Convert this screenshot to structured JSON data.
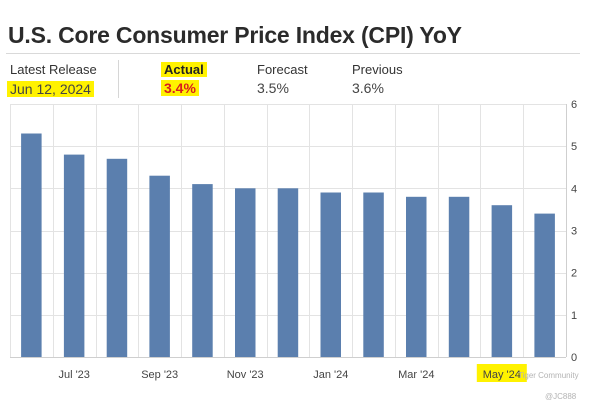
{
  "header": {
    "title": "U.S. Core Consumer Price Index (CPI) YoY"
  },
  "stats": {
    "latest_release": {
      "label": "Latest Release",
      "value": "Jun 12, 2024"
    },
    "actual": {
      "label": "Actual",
      "value": "3.4%"
    },
    "forecast": {
      "label": "Forecast",
      "value": "3.5%"
    },
    "previous": {
      "label": "Previous",
      "value": "3.6%"
    }
  },
  "colors": {
    "bar": "#5b7fae",
    "highlight": "#fff200",
    "actual_text": "#d91e1e",
    "grid": "#e3e3e3"
  },
  "chart_data": {
    "type": "bar",
    "categories": [
      "Jun '23",
      "Jul '23",
      "Aug '23",
      "Sep '23",
      "Oct '23",
      "Nov '23",
      "Dec '23",
      "Jan '24",
      "Feb '24",
      "Mar '24",
      "Apr '24",
      "May '24",
      "Jun '24"
    ],
    "values": [
      5.3,
      4.8,
      4.7,
      4.3,
      4.1,
      4.0,
      4.0,
      3.9,
      3.9,
      3.8,
      3.8,
      3.6,
      3.4
    ],
    "x_tick_labels": [
      "Jul '23",
      "Sep '23",
      "Nov '23",
      "Jan '24",
      "Mar '24",
      "May '24"
    ],
    "highlighted_tick": "May '24",
    "y_ticks": [
      "0",
      "1",
      "2",
      "3",
      "4",
      "5",
      "6"
    ],
    "ylim": [
      0,
      6
    ],
    "y_axis_side": "right",
    "grid": true,
    "title": "",
    "xlabel": "",
    "ylabel": ""
  },
  "watermark": "Tiger Community",
  "credit": "@JC888"
}
